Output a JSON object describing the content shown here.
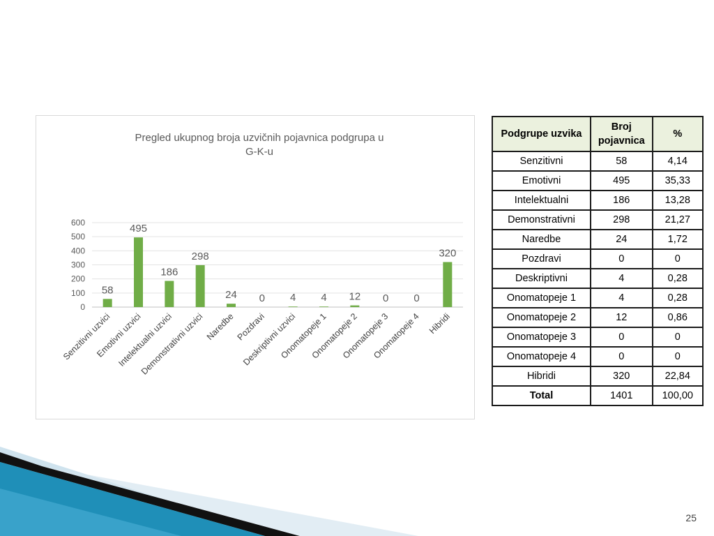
{
  "slide": {
    "page_number": "25"
  },
  "chart_data": {
    "type": "bar",
    "title_lines": [
      "Pregled ukupnog broja uzvičnih pojavnica podgrupa u",
      "G-K-u"
    ],
    "categories": [
      "Senzitivni uzvici",
      "Emotivni uzvici",
      "Intelektualni uzvici",
      "Demonstrativni uzvici",
      "Naredbe",
      "Pozdravi",
      "Deskriptivni uzvici",
      "Onomatopeje 1",
      "Onomatopeje 2",
      "Onomatopeje 3",
      "Onomatopeje 4",
      "Hibridi"
    ],
    "values": [
      58,
      495,
      186,
      298,
      24,
      0,
      4,
      4,
      12,
      0,
      0,
      320
    ],
    "ylim": [
      0,
      600
    ],
    "yticks": [
      0,
      100,
      200,
      300,
      400,
      500,
      600
    ],
    "grid": true,
    "legend": false,
    "bar_color": "#70ad47"
  },
  "table": {
    "headers": [
      "Podgrupe uzvika",
      "Broj pojavnica",
      "%"
    ],
    "rows": [
      [
        "Senzitivni",
        "58",
        "4,14"
      ],
      [
        "Emotivni",
        "495",
        "35,33"
      ],
      [
        "Intelektualni",
        "186",
        "13,28"
      ],
      [
        "Demonstrativni",
        "298",
        "21,27"
      ],
      [
        "Naredbe",
        "24",
        "1,72"
      ],
      [
        "Pozdravi",
        "0",
        "0"
      ],
      [
        "Deskriptivni",
        "4",
        "0,28"
      ],
      [
        "Onomatopeje 1",
        "4",
        "0,28"
      ],
      [
        "Onomatopeje 2",
        "12",
        "0,86"
      ],
      [
        "Onomatopeje 3",
        "0",
        "0"
      ],
      [
        "Onomatopeje 4",
        "0",
        "0"
      ],
      [
        "Hibridi",
        "320",
        "22,84"
      ]
    ],
    "total": [
      "Total",
      "1401",
      "100,00"
    ]
  },
  "colors": {
    "header_bg": "#ebf1de",
    "decor_blue": "#1f8fb8",
    "decor_light": "#cfe3ee"
  }
}
